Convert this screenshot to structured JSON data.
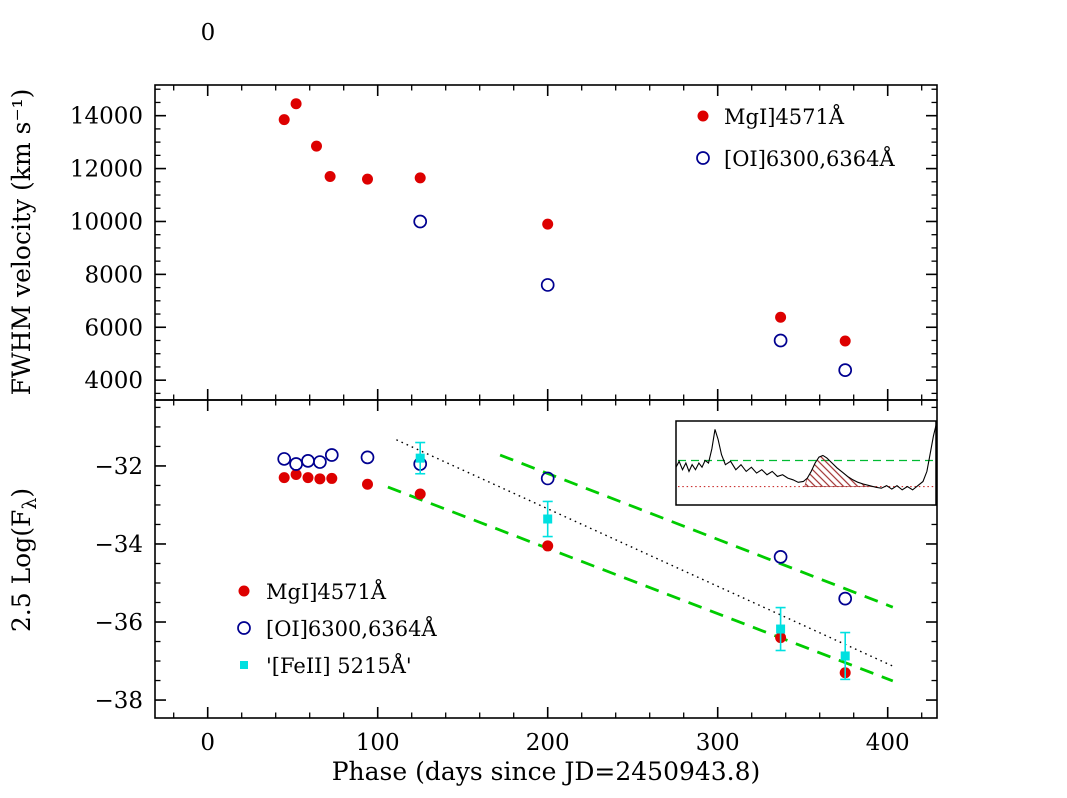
{
  "figure": {
    "background": "#ffffff",
    "frame_color": "#000000"
  },
  "chart_data": [
    {
      "type": "scatter",
      "panel": "top",
      "ylabel": "FWHM velocity (km s⁻¹)",
      "top_axis_label": "0",
      "xlim": [
        -31,
        429
      ],
      "ylim": [
        3250,
        15160
      ],
      "xticks": [
        0,
        100,
        200,
        300,
        400
      ],
      "xminor": 20,
      "yticks": [
        4000,
        6000,
        8000,
        10000,
        12000,
        14000
      ],
      "yminor": 500,
      "grid": false,
      "legend_position": "top-right",
      "series": [
        {
          "name": "MgI]4571Å",
          "marker": "filled-circle",
          "color": "#dd0000",
          "points": [
            [
              45,
              13850
            ],
            [
              52,
              14450
            ],
            [
              64,
              12850
            ],
            [
              72,
              11700
            ],
            [
              94,
              11600
            ],
            [
              125,
              11650
            ],
            [
              200,
              9900
            ],
            [
              337,
              6380
            ],
            [
              375,
              5480
            ]
          ]
        },
        {
          "name": "[OI]6300,6364Å",
          "marker": "open-circle",
          "color": "#000090",
          "points": [
            [
              125,
              10000
            ],
            [
              200,
              7600
            ],
            [
              337,
              5500
            ],
            [
              375,
              4380
            ]
          ]
        }
      ]
    },
    {
      "type": "scatter",
      "panel": "bottom",
      "xlabel": "Phase (days since JD=2450943.8)",
      "ylabel": "2.5 Log(Fλ)",
      "ylabel_parts": [
        {
          "t": "2.5 Log(F"
        },
        {
          "t": "λ",
          "sub": true
        },
        {
          "t": ")"
        }
      ],
      "xlim": [
        -31,
        429
      ],
      "ylim": [
        -38.46,
        -30.31
      ],
      "xticks": [
        0,
        100,
        200,
        300,
        400
      ],
      "xminor": 20,
      "yticks": [
        -38,
        -36,
        -34,
        -32
      ],
      "yminor": 0.5,
      "grid": false,
      "legend_position": "bottom-left",
      "series": [
        {
          "name": "MgI]4571Å",
          "marker": "filled-circle",
          "color": "#dd0000",
          "points": [
            [
              45,
              -32.3
            ],
            [
              52,
              -32.22
            ],
            [
              59,
              -32.3
            ],
            [
              66,
              -32.33
            ],
            [
              73,
              -32.32
            ],
            [
              94,
              -32.47
            ],
            [
              125,
              -32.72
            ],
            [
              200,
              -34.05
            ],
            [
              337,
              -36.4
            ],
            [
              375,
              -37.3
            ]
          ]
        },
        {
          "name": "[OI]6300,6364Å",
          "marker": "open-circle",
          "color": "#000090",
          "points": [
            [
              45,
              -31.82
            ],
            [
              52,
              -31.95
            ],
            [
              59,
              -31.87
            ],
            [
              66,
              -31.9
            ],
            [
              73,
              -31.72
            ],
            [
              94,
              -31.78
            ],
            [
              125,
              -31.95
            ],
            [
              200,
              -32.32
            ],
            [
              337,
              -34.33
            ],
            [
              375,
              -35.4
            ]
          ]
        },
        {
          "name": "'[FeII] 5215Å'",
          "marker": "filled-square",
          "color": "#00e0e0",
          "points": [
            [
              125,
              -31.8
            ],
            [
              200,
              -33.36
            ],
            [
              337,
              -36.18
            ],
            [
              375,
              -36.87
            ]
          ],
          "yerr": [
            0.4,
            0.45,
            0.55,
            0.6
          ]
        }
      ],
      "lines": [
        {
          "name": "decline-slope-upper",
          "style": "dashed",
          "color": "#00cc00",
          "width": 2.8,
          "from": [
            172,
            -31.72
          ],
          "to": [
            403,
            -35.62
          ]
        },
        {
          "name": "decline-slope-lower",
          "style": "dashed",
          "color": "#00cc00",
          "width": 2.8,
          "from": [
            106,
            -32.54
          ],
          "to": [
            403,
            -37.51
          ]
        },
        {
          "name": "fit-dotted",
          "style": "dotted",
          "color": "#000000",
          "width": 1.4,
          "from": [
            111,
            -31.33
          ],
          "to": [
            404,
            -37.15
          ]
        }
      ],
      "inset": {
        "description": "spectrum-with-hatched-line-flux-region",
        "spectrum_color": "#000000",
        "hatch_color": "#a03030",
        "continuum_dashed_color": "#00bb33",
        "baseline_dotted_color": "#cc3333",
        "green_line_y": 0.47,
        "red_line_y": 0.78,
        "hatch_x_range": [
          0.495,
          0.772
        ],
        "spectrum": [
          [
            0.0,
            0.55
          ],
          [
            0.012,
            0.48
          ],
          [
            0.025,
            0.58
          ],
          [
            0.038,
            0.5
          ],
          [
            0.05,
            0.6
          ],
          [
            0.062,
            0.52
          ],
          [
            0.075,
            0.58
          ],
          [
            0.088,
            0.5
          ],
          [
            0.1,
            0.55
          ],
          [
            0.112,
            0.47
          ],
          [
            0.125,
            0.5
          ],
          [
            0.138,
            0.33
          ],
          [
            0.15,
            0.1
          ],
          [
            0.162,
            0.22
          ],
          [
            0.175,
            0.4
          ],
          [
            0.19,
            0.52
          ],
          [
            0.21,
            0.48
          ],
          [
            0.23,
            0.58
          ],
          [
            0.25,
            0.52
          ],
          [
            0.27,
            0.6
          ],
          [
            0.29,
            0.55
          ],
          [
            0.31,
            0.62
          ],
          [
            0.33,
            0.58
          ],
          [
            0.35,
            0.64
          ],
          [
            0.37,
            0.6
          ],
          [
            0.39,
            0.66
          ],
          [
            0.41,
            0.64
          ],
          [
            0.43,
            0.68
          ],
          [
            0.45,
            0.7
          ],
          [
            0.47,
            0.73
          ],
          [
            0.49,
            0.72
          ],
          [
            0.505,
            0.68
          ],
          [
            0.52,
            0.6
          ],
          [
            0.535,
            0.5
          ],
          [
            0.55,
            0.43
          ],
          [
            0.565,
            0.41
          ],
          [
            0.58,
            0.44
          ],
          [
            0.6,
            0.5
          ],
          [
            0.62,
            0.56
          ],
          [
            0.64,
            0.61
          ],
          [
            0.66,
            0.66
          ],
          [
            0.68,
            0.7
          ],
          [
            0.7,
            0.73
          ],
          [
            0.72,
            0.75
          ],
          [
            0.745,
            0.77
          ],
          [
            0.77,
            0.79
          ],
          [
            0.79,
            0.8
          ],
          [
            0.81,
            0.77
          ],
          [
            0.83,
            0.81
          ],
          [
            0.85,
            0.77
          ],
          [
            0.87,
            0.82
          ],
          [
            0.89,
            0.78
          ],
          [
            0.91,
            0.82
          ],
          [
            0.93,
            0.77
          ],
          [
            0.95,
            0.72
          ],
          [
            0.965,
            0.6
          ],
          [
            0.98,
            0.35
          ],
          [
            0.99,
            0.18
          ],
          [
            1.0,
            0.05
          ]
        ]
      }
    }
  ]
}
